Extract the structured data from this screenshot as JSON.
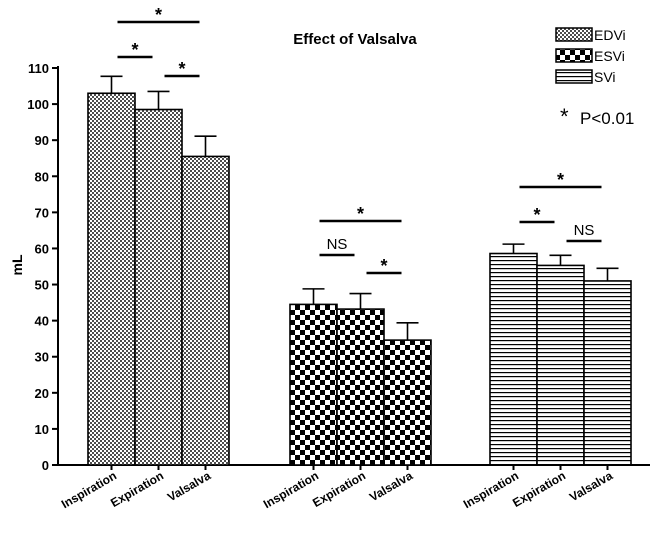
{
  "chart_data": {
    "type": "bar",
    "title": "Effect of Valsalva",
    "ylabel": "mL",
    "xlabel": "",
    "ylim": [
      0,
      110
    ],
    "yticks": [
      0,
      10,
      20,
      30,
      40,
      50,
      60,
      70,
      80,
      90,
      100,
      110
    ],
    "legend_position": "top-right",
    "categories": [
      "Inspiration",
      "Expiration",
      "Valsalva"
    ],
    "series": [
      {
        "name": "EDVi",
        "pattern": "fine-check",
        "values": [
          103.0,
          98.5,
          85.5
        ],
        "errors": [
          4.7,
          5.0,
          5.6
        ]
      },
      {
        "name": "ESVi",
        "pattern": "coarse-check",
        "values": [
          44.5,
          43.2,
          34.6
        ],
        "errors": [
          4.3,
          4.3,
          4.8
        ]
      },
      {
        "name": "SVi",
        "pattern": "horizontal-stripes",
        "values": [
          58.6,
          55.3,
          51.0
        ],
        "errors": [
          2.6,
          2.8,
          3.5
        ]
      }
    ],
    "annotations": [
      {
        "group": 0,
        "from": 0,
        "to": 2,
        "label": "*"
      },
      {
        "group": 0,
        "from": 0,
        "to": 1,
        "label": "*"
      },
      {
        "group": 0,
        "from": 1,
        "to": 2,
        "label": "*"
      },
      {
        "group": 1,
        "from": 0,
        "to": 2,
        "label": "*"
      },
      {
        "group": 1,
        "from": 0,
        "to": 1,
        "label": "NS"
      },
      {
        "group": 1,
        "from": 1,
        "to": 2,
        "label": "*"
      },
      {
        "group": 2,
        "from": 0,
        "to": 2,
        "label": "*"
      },
      {
        "group": 2,
        "from": 0,
        "to": 1,
        "label": "*"
      },
      {
        "group": 2,
        "from": 1,
        "to": 2,
        "label": "NS"
      }
    ],
    "significance_note": {
      "symbol": "*",
      "text": "P<0.01"
    }
  }
}
